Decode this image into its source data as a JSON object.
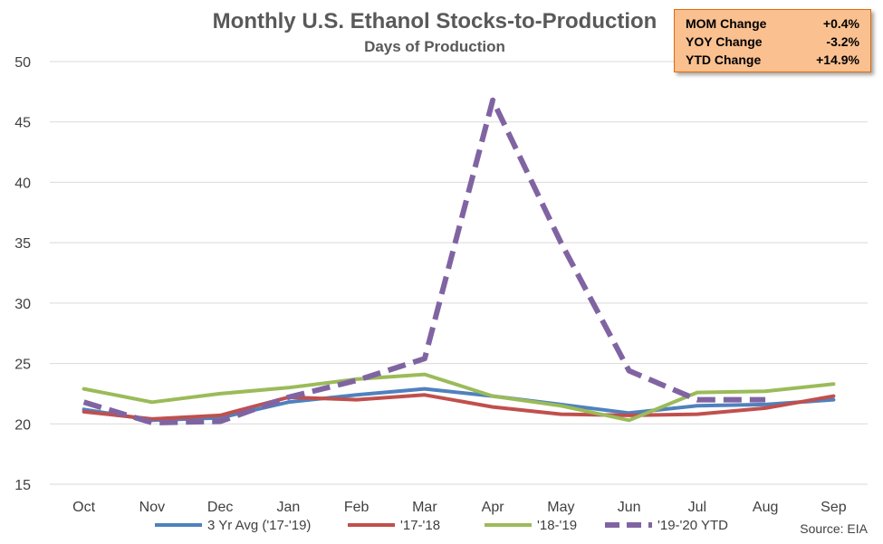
{
  "chart_data": {
    "type": "line",
    "title": "Monthly U.S. Ethanol Stocks-to-Production",
    "subtitle": "Days of Production",
    "categories": [
      "Oct",
      "Nov",
      "Dec",
      "Jan",
      "Feb",
      "Mar",
      "Apr",
      "May",
      "Jun",
      "Jul",
      "Aug",
      "Sep"
    ],
    "yticks": [
      "50",
      "45",
      "40",
      "35",
      "30",
      "25",
      "20",
      "15"
    ],
    "ylim": [
      15,
      50
    ],
    "grid": true,
    "legend_position": "bottom",
    "series": [
      {
        "name": "3 Yr Avg ('17-'19)",
        "color": "#4f81bd",
        "dash": false,
        "values": [
          21.2,
          20.3,
          20.5,
          21.8,
          22.4,
          22.9,
          22.3,
          21.6,
          20.9,
          21.5,
          21.6,
          22.0
        ]
      },
      {
        "name": "'17-'18",
        "color": "#c0504d",
        "dash": false,
        "values": [
          21.0,
          20.4,
          20.7,
          22.2,
          22.0,
          22.4,
          21.4,
          20.8,
          20.7,
          20.8,
          21.3,
          22.3
        ]
      },
      {
        "name": "'18-'19",
        "color": "#9bbb59",
        "dash": false,
        "values": [
          22.9,
          21.8,
          22.5,
          23.0,
          23.7,
          24.1,
          22.3,
          21.5,
          20.3,
          22.6,
          22.7,
          23.3
        ]
      },
      {
        "name": "'19-'20 YTD",
        "color": "#8064a2",
        "dash": true,
        "values": [
          21.8,
          20.1,
          20.2,
          22.2,
          23.6,
          25.4,
          46.8,
          35.0,
          24.4,
          22.0,
          22.0,
          null
        ]
      }
    ]
  },
  "stats": [
    {
      "label": "MOM Change",
      "value": "+0.4%"
    },
    {
      "label": "YOY Change",
      "value": "-3.2%"
    },
    {
      "label": "YTD Change",
      "value": "+14.9%"
    }
  ],
  "source": "Source: EIA",
  "colors": {
    "stats_fill": "#fac090",
    "stats_border": "#e26b0a",
    "grid": "#d9d9d9"
  }
}
